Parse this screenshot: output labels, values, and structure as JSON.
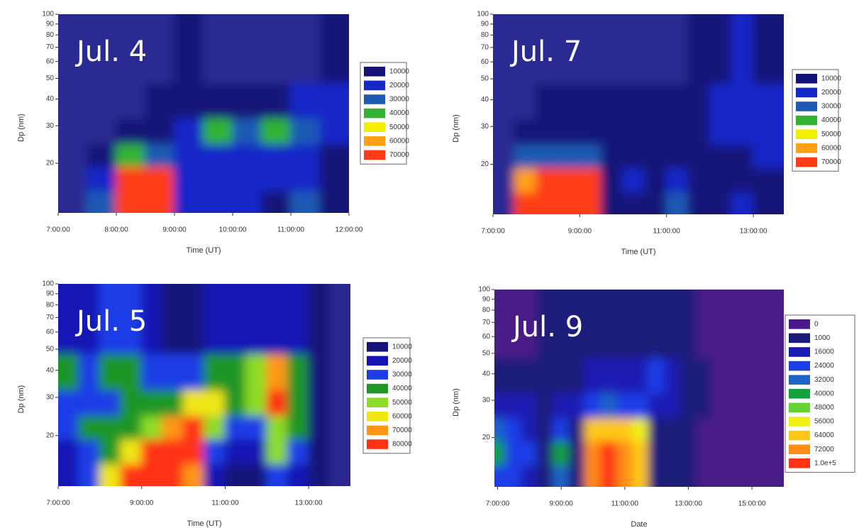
{
  "chart_data": [
    {
      "type": "contour",
      "title": "Jul. 4",
      "xlabel": "Time (UT)",
      "ylabel": "Dp (nm)",
      "log_y": true,
      "plot_color": "#2c2a92",
      "xlim": [
        7,
        12
      ],
      "xticks": [
        {
          "value": 7,
          "label": "7:00:00"
        },
        {
          "value": 8,
          "label": "8:00:00"
        },
        {
          "value": 9,
          "label": "9:00:00"
        },
        {
          "value": 10,
          "label": "10:00:00"
        },
        {
          "value": 11,
          "label": "11:00:00"
        },
        {
          "value": 12,
          "label": "12:00:00"
        }
      ],
      "ylim": [
        11.7,
        100
      ],
      "yticks": [
        20,
        30,
        40,
        50,
        60,
        70,
        80,
        90,
        100
      ],
      "levels": [
        10000,
        20000,
        30000,
        40000,
        50000,
        60000,
        70000
      ],
      "colors": [
        "#141478",
        "#1428c8",
        "#1e5ab4",
        "#32b432",
        "#f0f000",
        "#ffa014",
        "#ff3c14"
      ],
      "x": [
        7.25,
        7.75,
        8.25,
        8.75,
        9.25,
        9.75,
        10.25,
        10.75,
        11.25,
        11.75
      ],
      "y": [
        13,
        17,
        22,
        28,
        38,
        60
      ],
      "z": [
        [
          5000,
          30000,
          75000,
          75000,
          20000,
          20000,
          22000,
          18000,
          30000,
          15000
        ],
        [
          5000,
          25000,
          72000,
          72000,
          20000,
          20000,
          22000,
          22000,
          28000,
          15000
        ],
        [
          5000,
          12000,
          40000,
          35000,
          22000,
          25000,
          25000,
          25000,
          25000,
          18000
        ],
        [
          5000,
          5000,
          12000,
          12000,
          22000,
          40000,
          38000,
          40000,
          35000,
          22000
        ],
        [
          5000,
          5000,
          8000,
          12000,
          15000,
          15000,
          15000,
          18000,
          20000,
          20000
        ],
        [
          5000,
          5000,
          5000,
          5000,
          12000,
          8000,
          8000,
          8000,
          8000,
          10000
        ]
      ]
    },
    {
      "type": "contour",
      "title": "Jul. 7",
      "xlabel": "Time (UT)",
      "ylabel": "Dp (nm)",
      "log_y": true,
      "plot_color": "#2c2a92",
      "xlim": [
        7,
        13.7
      ],
      "xticks": [
        {
          "value": 7,
          "label": "7:00:00"
        },
        {
          "value": 9,
          "label": "9:00:00"
        },
        {
          "value": 11,
          "label": "11:00:00"
        },
        {
          "value": 13,
          "label": "13:00:00"
        }
      ],
      "ylim": [
        11.7,
        100
      ],
      "yticks": [
        20,
        30,
        40,
        50,
        60,
        70,
        80,
        90,
        100
      ],
      "levels": [
        10000,
        20000,
        30000,
        40000,
        50000,
        60000,
        70000
      ],
      "colors": [
        "#141478",
        "#1428c8",
        "#1e5ab4",
        "#32b432",
        "#f0f000",
        "#ffa014",
        "#ff3c14"
      ],
      "x": [
        7.25,
        7.75,
        8.25,
        8.75,
        9.25,
        9.75,
        10.25,
        10.75,
        11.25,
        11.75,
        12.25,
        12.75,
        13.25
      ],
      "y": [
        13,
        17,
        22,
        28,
        38,
        60
      ],
      "z": [
        [
          5000,
          72000,
          75000,
          75000,
          75000,
          15000,
          15000,
          10000,
          30000,
          10000,
          10000,
          28000,
          15000
        ],
        [
          5000,
          65000,
          70000,
          72000,
          72000,
          15000,
          20000,
          10000,
          25000,
          10000,
          12000,
          15000,
          18000
        ],
        [
          5000,
          30000,
          35000,
          35000,
          35000,
          15000,
          15000,
          12000,
          12000,
          12000,
          15000,
          18000,
          20000
        ],
        [
          5000,
          10000,
          12000,
          12000,
          12000,
          12000,
          12000,
          12000,
          12000,
          15000,
          20000,
          22000,
          22000
        ],
        [
          5000,
          5000,
          10000,
          10000,
          10000,
          10000,
          10000,
          10000,
          12000,
          15000,
          22000,
          25000,
          22000
        ],
        [
          5000,
          5000,
          5000,
          5000,
          5000,
          5000,
          5000,
          5000,
          8000,
          10000,
          12000,
          20000,
          15000
        ]
      ]
    },
    {
      "type": "contour",
      "title": "Jul. 5",
      "xlabel": "Time (UT)",
      "ylabel": "Dp (nm)",
      "log_y": true,
      "plot_color": "#2a2890",
      "xlim": [
        7,
        14
      ],
      "xticks": [
        {
          "value": 7,
          "label": "7:00:00"
        },
        {
          "value": 9,
          "label": "9:00:00"
        },
        {
          "value": 11,
          "label": "11:00:00"
        },
        {
          "value": 13,
          "label": "13:00:00"
        }
      ],
      "ylim": [
        11.7,
        100
      ],
      "yticks": [
        20,
        30,
        40,
        50,
        60,
        70,
        80,
        90,
        100
      ],
      "levels": [
        10000,
        20000,
        30000,
        40000,
        50000,
        60000,
        70000,
        80000
      ],
      "colors": [
        "#141478",
        "#1414b4",
        "#1e3ce6",
        "#1e9628",
        "#8cdc28",
        "#f0e614",
        "#ff9614",
        "#ff3214"
      ],
      "x": [
        7.25,
        7.75,
        8.25,
        8.75,
        9.25,
        9.75,
        10.25,
        10.75,
        11.25,
        11.75,
        12.25,
        12.75,
        13.25,
        13.75
      ],
      "y": [
        13,
        17,
        22,
        28,
        38,
        60
      ],
      "z": [
        [
          20000,
          35000,
          60000,
          85000,
          85000,
          85000,
          70000,
          25000,
          15000,
          15000,
          35000,
          20000,
          10000,
          8000
        ],
        [
          25000,
          35000,
          45000,
          60000,
          85000,
          85000,
          85000,
          35000,
          25000,
          25000,
          50000,
          30000,
          10000,
          8000
        ],
        [
          30000,
          40000,
          40000,
          45000,
          50000,
          70000,
          80000,
          55000,
          30000,
          30000,
          55000,
          40000,
          10000,
          8000
        ],
        [
          35000,
          35000,
          35000,
          40000,
          40000,
          45000,
          60000,
          60000,
          45000,
          55000,
          80000,
          45000,
          12000,
          8000
        ],
        [
          40000,
          38000,
          40000,
          45000,
          35000,
          30000,
          35000,
          45000,
          45000,
          50000,
          75000,
          45000,
          12000,
          8000
        ],
        [
          25000,
          25000,
          30000,
          35000,
          20000,
          15000,
          15000,
          20000,
          20000,
          20000,
          25000,
          20000,
          10000,
          8000
        ]
      ]
    },
    {
      "type": "contour",
      "title": "Jul. 9",
      "xlabel": "Date",
      "ylabel": "Dp (nm)",
      "log_y": true,
      "plot_color": "#3c1e8c",
      "xlim": [
        6.9,
        16
      ],
      "xticks": [
        {
          "value": 7,
          "label": "7:00:00"
        },
        {
          "value": 9,
          "label": "9:00:00"
        },
        {
          "value": 11,
          "label": "11:00:00"
        },
        {
          "value": 13,
          "label": "13:00:00"
        },
        {
          "value": 15,
          "label": "15:00:00"
        }
      ],
      "ylim": [
        11.7,
        100
      ],
      "yticks": [
        20,
        30,
        40,
        50,
        60,
        70,
        80,
        90,
        100
      ],
      "levels": [
        0,
        1000,
        16000,
        24000,
        32000,
        40000,
        48000,
        56000,
        64000,
        72000,
        {
          "value": 100000,
          "label": "1.0e+5"
        }
      ],
      "colors": [
        "#4a1a8a",
        "#1a1a7a",
        "#1a1ab4",
        "#1e3ce8",
        "#1e64c8",
        "#14a03c",
        "#64d232",
        "#f0f014",
        "#ffc814",
        "#ff8c14",
        "#ff3214"
      ],
      "x": [
        7,
        7.5,
        8,
        8.5,
        9,
        9.5,
        10,
        10.5,
        11,
        11.5,
        12,
        12.5,
        13,
        13.5,
        14,
        14.5,
        15,
        15.5
      ],
      "y": [
        13,
        17,
        22,
        28,
        38,
        60
      ],
      "z": [
        [
          30000,
          25000,
          20000,
          5000,
          35000,
          15000,
          72000,
          100000,
          72000,
          64000,
          8000,
          5000,
          1000,
          0,
          0,
          0,
          0,
          0
        ],
        [
          40000,
          30000,
          25000,
          10000,
          40000,
          15000,
          72000,
          100000,
          72000,
          64000,
          10000,
          5000,
          1000,
          0,
          0,
          0,
          0,
          0
        ],
        [
          35000,
          25000,
          20000,
          10000,
          30000,
          15000,
          64000,
          64000,
          64000,
          60000,
          12000,
          8000,
          1000,
          0,
          0,
          0,
          0,
          0
        ],
        [
          16000,
          16000,
          16000,
          10000,
          16000,
          16000,
          24000,
          32000,
          30000,
          30000,
          16000,
          16000,
          5000,
          1000,
          0,
          0,
          0,
          0
        ],
        [
          5000,
          5000,
          5000,
          5000,
          5000,
          5000,
          16000,
          16000,
          16000,
          20000,
          24000,
          16000,
          5000,
          1000,
          0,
          0,
          0,
          0
        ],
        [
          0,
          0,
          0,
          1000,
          1000,
          1000,
          1000,
          5000,
          5000,
          5000,
          5000,
          5000,
          1000,
          0,
          0,
          0,
          0,
          0
        ]
      ]
    }
  ]
}
